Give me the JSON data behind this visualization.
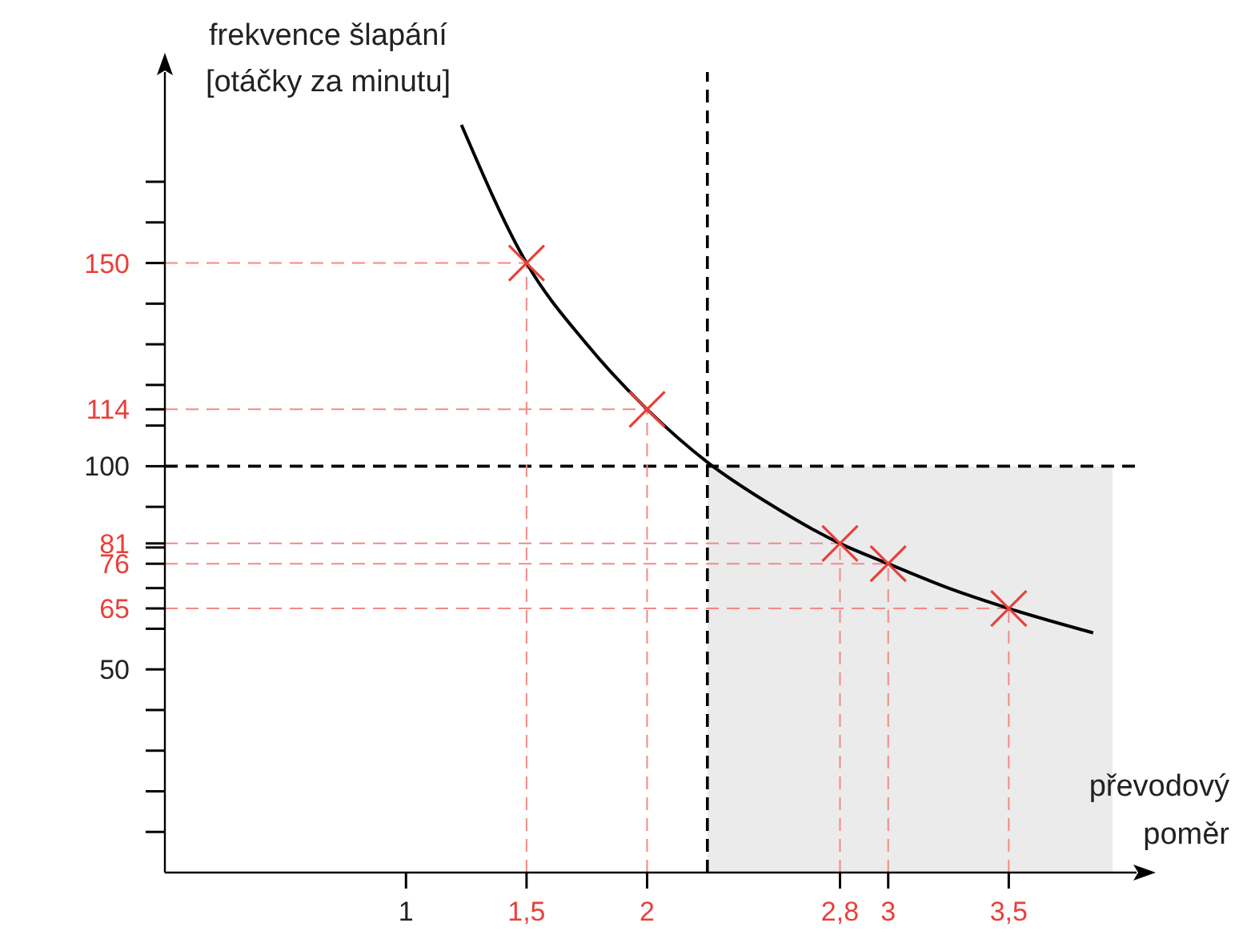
{
  "chart_data": {
    "type": "line",
    "xlabel": "převodový poměr",
    "ylabel": "frekvence šlapání [otáčky za minutu]",
    "xlim": [
      0,
      4.03
    ],
    "ylim": [
      0,
      197
    ],
    "xticks": [
      1,
      {
        "value": 1.5,
        "label": "1,5"
      },
      2,
      {
        "value": 2.8,
        "label": "2,8"
      },
      3,
      {
        "value": 3.5,
        "label": "3,5"
      }
    ],
    "yticks": [
      {
        "value": 10,
        "label": null
      },
      {
        "value": 20,
        "label": null
      },
      {
        "value": 30,
        "label": null
      },
      {
        "value": 40,
        "label": null
      },
      50,
      {
        "value": 60,
        "label": null
      },
      65,
      {
        "value": 70,
        "label": null
      },
      76,
      {
        "value": 80,
        "label": null
      },
      81,
      {
        "value": 90,
        "label": null
      },
      100,
      {
        "value": 110,
        "label": null
      },
      114,
      {
        "value": 120,
        "label": null
      },
      {
        "value": 130,
        "label": null
      },
      {
        "value": 140,
        "label": null
      },
      150,
      {
        "value": 160,
        "label": null
      },
      {
        "value": 170,
        "label": null
      }
    ],
    "series": [
      {
        "type": "area",
        "color": "#ebebeb",
        "x": [
          2.25,
          3.93
        ],
        "values": [
          100,
          100
        ]
      },
      {
        "color": "#f28a86",
        "line_style": "dashed",
        "x": [
          0,
          1.5
        ],
        "values": [
          150,
          150
        ]
      },
      {
        "color": "#f28a86",
        "line_style": "dashed",
        "x": [
          1.5,
          1.5
        ],
        "values": [
          0,
          150
        ]
      },
      {
        "color": "#f28a86",
        "line_style": "dashed",
        "x": [
          0,
          2
        ],
        "values": [
          114,
          114
        ]
      },
      {
        "color": "#f28a86",
        "line_style": "dashed",
        "x": [
          2,
          2
        ],
        "values": [
          0,
          114
        ]
      },
      {
        "color": "#f28a86",
        "line_style": "dashed",
        "x": [
          0,
          2.8
        ],
        "values": [
          81,
          81
        ]
      },
      {
        "color": "#f28a86",
        "line_style": "dashed",
        "x": [
          2.8,
          2.8
        ],
        "values": [
          0,
          81
        ]
      },
      {
        "color": "#f28a86",
        "line_style": "dashed",
        "x": [
          0,
          3
        ],
        "values": [
          76,
          76
        ]
      },
      {
        "color": "#f28a86",
        "line_style": "dashed",
        "x": [
          3,
          3
        ],
        "values": [
          0,
          76
        ]
      },
      {
        "color": "#f28a86",
        "line_style": "dashed",
        "x": [
          0,
          3.5
        ],
        "values": [
          65,
          65
        ]
      },
      {
        "color": "#f28a86",
        "line_style": "dashed",
        "x": [
          3.5,
          3.5
        ],
        "values": [
          0,
          65
        ]
      },
      {
        "color": "#000000",
        "x": [
          1.23,
          1.5,
          1.75,
          2,
          2.25,
          2.5,
          2.8,
          3,
          3.25,
          3.5,
          3.85
        ],
        "values": [
          184,
          150,
          130,
          114,
          101,
          91,
          81,
          76,
          70,
          65,
          59
        ]
      },
      {
        "type": "scatter",
        "color": "#e8403a",
        "marker": "cross",
        "x": [
          1.5,
          2,
          2.8,
          3,
          3.5
        ],
        "values": [
          150,
          114,
          81,
          76,
          65
        ]
      }
    ],
    "ref_lines": [
      {
        "axis": "x",
        "value": 2.25,
        "color": "#000000",
        "line_style": "dashed"
      },
      {
        "axis": "y",
        "value": 100,
        "color": "#000000",
        "line_style": "dashed"
      }
    ],
    "grid": false,
    "legend": false
  }
}
